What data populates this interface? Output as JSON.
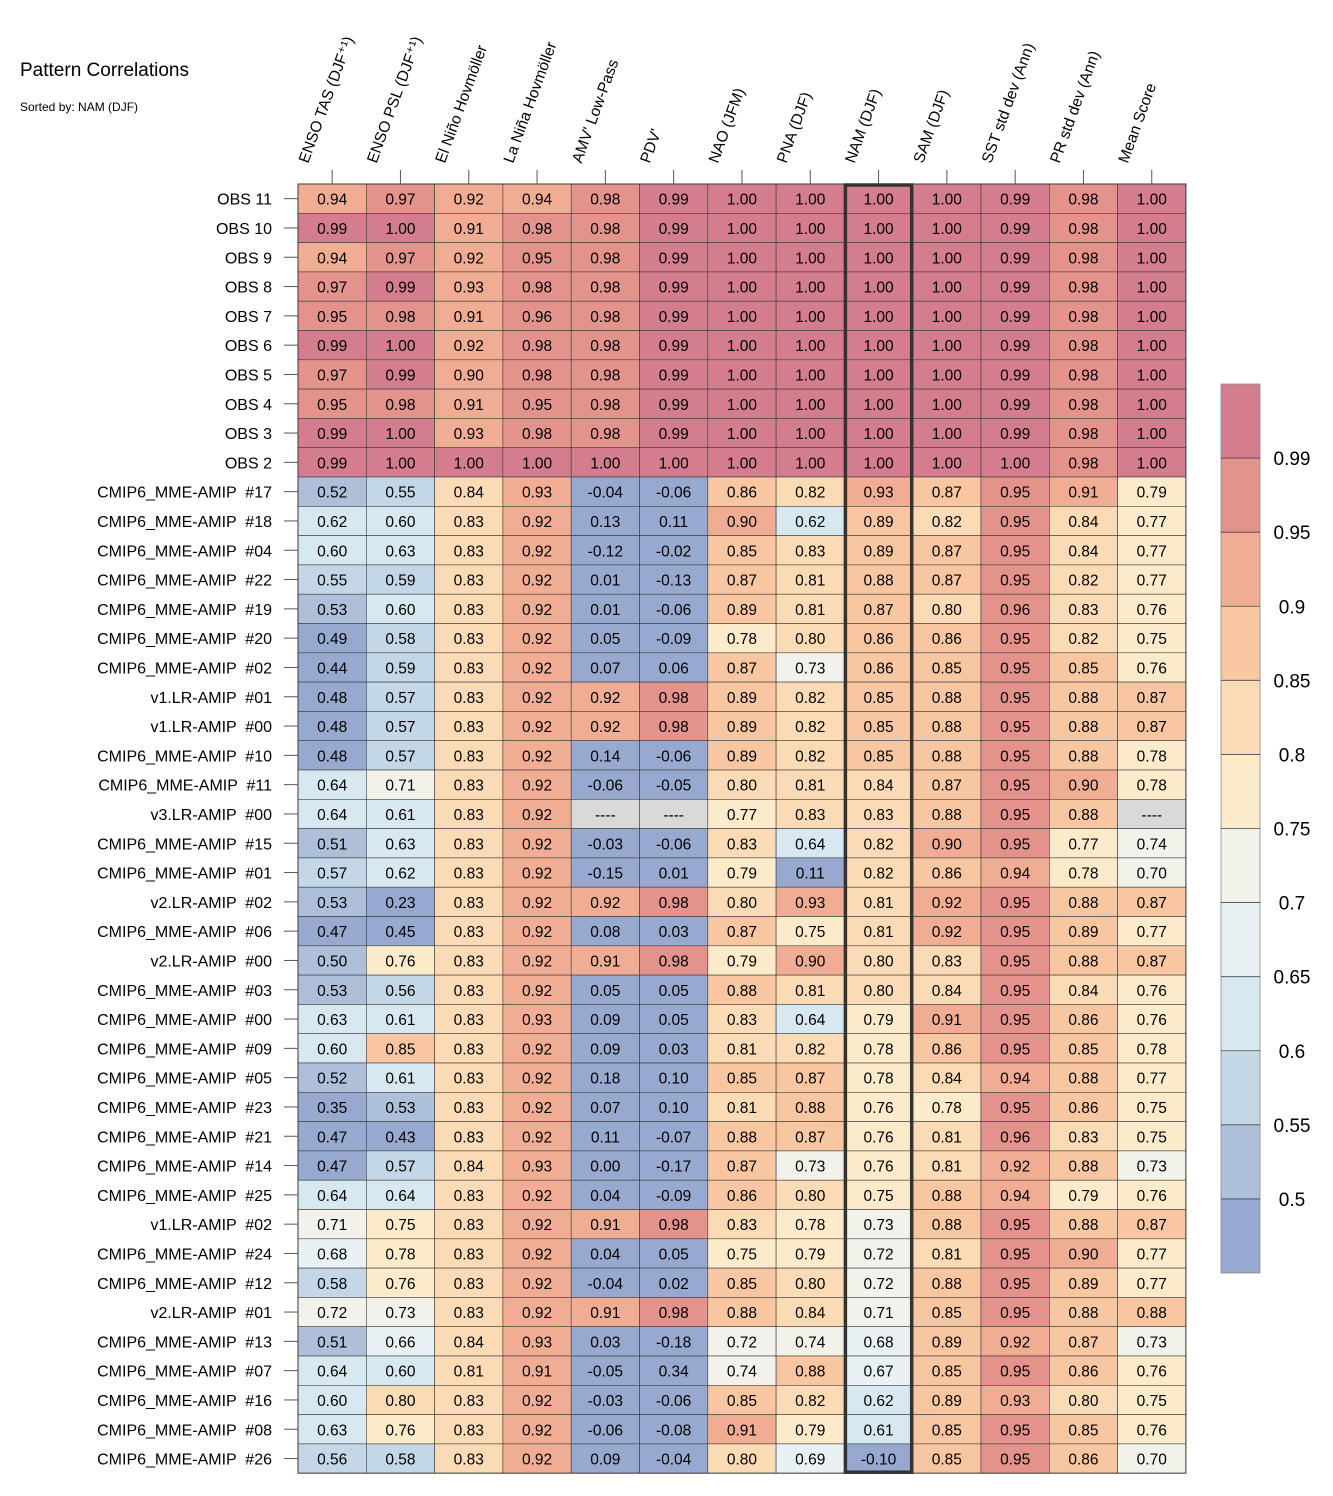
{
  "chart_data": {
    "type": "heatmap",
    "title": "Pattern Correlations",
    "subtitle": "Sorted by: NAM (DJF)",
    "highlight_column": "NAM (DJF)",
    "columns": [
      "ENSO TAS (DJF⁺¹)",
      "ENSO PSL (DJF⁺¹)",
      "El Niño Hovmöller",
      "La Niña Hovmöller",
      "AMV' Low-Pass",
      "PDV'",
      "NAO (JFM)",
      "PNA (DJF)",
      "NAM (DJF)",
      "SAM (DJF)",
      "SST std dev (Ann)",
      "PR std dev (Ann)",
      "Mean Score"
    ],
    "rows": [
      "OBS 11",
      "OBS 10",
      "OBS 9",
      "OBS 8",
      "OBS 7",
      "OBS 6",
      "OBS 5",
      "OBS 4",
      "OBS 3",
      "OBS 2",
      "CMIP6_MME-AMIP  #17",
      "CMIP6_MME-AMIP  #18",
      "CMIP6_MME-AMIP  #04",
      "CMIP6_MME-AMIP  #22",
      "CMIP6_MME-AMIP  #19",
      "CMIP6_MME-AMIP  #20",
      "CMIP6_MME-AMIP  #02",
      "v1.LR-AMIP  #01",
      "v1.LR-AMIP  #00",
      "CMIP6_MME-AMIP  #10",
      "CMIP6_MME-AMIP  #11",
      "v3.LR-AMIP  #00",
      "CMIP6_MME-AMIP  #15",
      "CMIP6_MME-AMIP  #01",
      "v2.LR-AMIP  #02",
      "CMIP6_MME-AMIP  #06",
      "v2.LR-AMIP  #00",
      "CMIP6_MME-AMIP  #03",
      "CMIP6_MME-AMIP  #00",
      "CMIP6_MME-AMIP  #09",
      "CMIP6_MME-AMIP  #05",
      "CMIP6_MME-AMIP  #23",
      "CMIP6_MME-AMIP  #21",
      "CMIP6_MME-AMIP  #14",
      "CMIP6_MME-AMIP  #25",
      "v1.LR-AMIP  #02",
      "CMIP6_MME-AMIP  #24",
      "CMIP6_MME-AMIP  #12",
      "v2.LR-AMIP  #01",
      "CMIP6_MME-AMIP  #13",
      "CMIP6_MME-AMIP  #07",
      "CMIP6_MME-AMIP  #16",
      "CMIP6_MME-AMIP  #08",
      "CMIP6_MME-AMIP  #26"
    ],
    "values": [
      [
        0.94,
        0.97,
        0.92,
        0.94,
        0.98,
        0.99,
        1.0,
        1.0,
        1.0,
        1.0,
        0.99,
        0.98,
        1.0
      ],
      [
        0.99,
        1.0,
        0.91,
        0.98,
        0.98,
        0.99,
        1.0,
        1.0,
        1.0,
        1.0,
        0.99,
        0.98,
        1.0
      ],
      [
        0.94,
        0.97,
        0.92,
        0.95,
        0.98,
        0.99,
        1.0,
        1.0,
        1.0,
        1.0,
        0.99,
        0.98,
        1.0
      ],
      [
        0.97,
        0.99,
        0.93,
        0.98,
        0.98,
        0.99,
        1.0,
        1.0,
        1.0,
        1.0,
        0.99,
        0.98,
        1.0
      ],
      [
        0.95,
        0.98,
        0.91,
        0.96,
        0.98,
        0.99,
        1.0,
        1.0,
        1.0,
        1.0,
        0.99,
        0.98,
        1.0
      ],
      [
        0.99,
        1.0,
        0.92,
        0.98,
        0.98,
        0.99,
        1.0,
        1.0,
        1.0,
        1.0,
        0.99,
        0.98,
        1.0
      ],
      [
        0.97,
        0.99,
        0.9,
        0.98,
        0.98,
        0.99,
        1.0,
        1.0,
        1.0,
        1.0,
        0.99,
        0.98,
        1.0
      ],
      [
        0.95,
        0.98,
        0.91,
        0.95,
        0.98,
        0.99,
        1.0,
        1.0,
        1.0,
        1.0,
        0.99,
        0.98,
        1.0
      ],
      [
        0.99,
        1.0,
        0.93,
        0.98,
        0.98,
        0.99,
        1.0,
        1.0,
        1.0,
        1.0,
        0.99,
        0.98,
        1.0
      ],
      [
        0.99,
        1.0,
        1.0,
        1.0,
        1.0,
        1.0,
        1.0,
        1.0,
        1.0,
        1.0,
        1.0,
        0.98,
        1.0
      ],
      [
        0.52,
        0.55,
        0.84,
        0.93,
        -0.04,
        -0.06,
        0.86,
        0.82,
        0.93,
        0.87,
        0.95,
        0.91,
        0.79
      ],
      [
        0.62,
        0.6,
        0.83,
        0.92,
        0.13,
        0.11,
        0.9,
        0.62,
        0.89,
        0.82,
        0.95,
        0.84,
        0.77
      ],
      [
        0.6,
        0.63,
        0.83,
        0.92,
        -0.12,
        -0.02,
        0.85,
        0.83,
        0.89,
        0.87,
        0.95,
        0.84,
        0.77
      ],
      [
        0.55,
        0.59,
        0.83,
        0.92,
        0.01,
        -0.13,
        0.87,
        0.81,
        0.88,
        0.87,
        0.95,
        0.82,
        0.77
      ],
      [
        0.53,
        0.6,
        0.83,
        0.92,
        0.01,
        -0.06,
        0.89,
        0.81,
        0.87,
        0.8,
        0.96,
        0.83,
        0.76
      ],
      [
        0.49,
        0.58,
        0.83,
        0.92,
        0.05,
        -0.09,
        0.78,
        0.8,
        0.86,
        0.86,
        0.95,
        0.82,
        0.75
      ],
      [
        0.44,
        0.59,
        0.83,
        0.92,
        0.07,
        0.06,
        0.87,
        0.73,
        0.86,
        0.85,
        0.95,
        0.85,
        0.76
      ],
      [
        0.48,
        0.57,
        0.83,
        0.92,
        0.92,
        0.98,
        0.89,
        0.82,
        0.85,
        0.88,
        0.95,
        0.88,
        0.87
      ],
      [
        0.48,
        0.57,
        0.83,
        0.92,
        0.92,
        0.98,
        0.89,
        0.82,
        0.85,
        0.88,
        0.95,
        0.88,
        0.87
      ],
      [
        0.48,
        0.57,
        0.83,
        0.92,
        0.14,
        -0.06,
        0.89,
        0.82,
        0.85,
        0.88,
        0.95,
        0.88,
        0.78
      ],
      [
        0.64,
        0.71,
        0.83,
        0.92,
        -0.06,
        -0.05,
        0.8,
        0.81,
        0.84,
        0.87,
        0.95,
        0.9,
        0.78
      ],
      [
        0.64,
        0.61,
        0.83,
        0.92,
        null,
        null,
        0.77,
        0.83,
        0.83,
        0.88,
        0.95,
        0.88,
        null
      ],
      [
        0.51,
        0.63,
        0.83,
        0.92,
        -0.03,
        -0.06,
        0.83,
        0.64,
        0.82,
        0.9,
        0.95,
        0.77,
        0.74
      ],
      [
        0.57,
        0.62,
        0.83,
        0.92,
        -0.15,
        0.01,
        0.79,
        0.11,
        0.82,
        0.86,
        0.94,
        0.78,
        0.7
      ],
      [
        0.53,
        0.23,
        0.83,
        0.92,
        0.92,
        0.98,
        0.8,
        0.93,
        0.81,
        0.92,
        0.95,
        0.88,
        0.87
      ],
      [
        0.47,
        0.45,
        0.83,
        0.92,
        0.08,
        0.03,
        0.87,
        0.75,
        0.81,
        0.92,
        0.95,
        0.89,
        0.77
      ],
      [
        0.5,
        0.76,
        0.83,
        0.92,
        0.91,
        0.98,
        0.79,
        0.9,
        0.8,
        0.83,
        0.95,
        0.88,
        0.87
      ],
      [
        0.53,
        0.56,
        0.83,
        0.92,
        0.05,
        0.05,
        0.88,
        0.81,
        0.8,
        0.84,
        0.95,
        0.84,
        0.76
      ],
      [
        0.63,
        0.61,
        0.83,
        0.93,
        0.09,
        0.05,
        0.83,
        0.64,
        0.79,
        0.91,
        0.95,
        0.86,
        0.76
      ],
      [
        0.6,
        0.85,
        0.83,
        0.92,
        0.09,
        0.03,
        0.81,
        0.82,
        0.78,
        0.86,
        0.95,
        0.85,
        0.78
      ],
      [
        0.52,
        0.61,
        0.83,
        0.92,
        0.18,
        0.1,
        0.85,
        0.87,
        0.78,
        0.84,
        0.94,
        0.88,
        0.77
      ],
      [
        0.35,
        0.53,
        0.83,
        0.92,
        0.07,
        0.1,
        0.81,
        0.88,
        0.76,
        0.78,
        0.95,
        0.86,
        0.75
      ],
      [
        0.47,
        0.43,
        0.83,
        0.92,
        0.11,
        -0.07,
        0.88,
        0.87,
        0.76,
        0.81,
        0.96,
        0.83,
        0.75
      ],
      [
        0.47,
        0.57,
        0.84,
        0.93,
        -0.0,
        -0.17,
        0.87,
        0.73,
        0.76,
        0.81,
        0.92,
        0.88,
        0.73
      ],
      [
        0.64,
        0.64,
        0.83,
        0.92,
        0.04,
        -0.09,
        0.86,
        0.8,
        0.75,
        0.88,
        0.94,
        0.79,
        0.76
      ],
      [
        0.71,
        0.75,
        0.83,
        0.92,
        0.91,
        0.98,
        0.83,
        0.78,
        0.73,
        0.88,
        0.95,
        0.88,
        0.87
      ],
      [
        0.68,
        0.78,
        0.83,
        0.92,
        0.04,
        0.05,
        0.75,
        0.79,
        0.72,
        0.81,
        0.95,
        0.9,
        0.77
      ],
      [
        0.58,
        0.76,
        0.83,
        0.92,
        -0.04,
        0.02,
        0.85,
        0.8,
        0.72,
        0.88,
        0.95,
        0.89,
        0.77
      ],
      [
        0.72,
        0.73,
        0.83,
        0.92,
        0.91,
        0.98,
        0.88,
        0.84,
        0.71,
        0.85,
        0.95,
        0.88,
        0.88
      ],
      [
        0.51,
        0.66,
        0.84,
        0.93,
        0.03,
        -0.18,
        0.72,
        0.74,
        0.68,
        0.89,
        0.92,
        0.87,
        0.73
      ],
      [
        0.64,
        0.6,
        0.81,
        0.91,
        -0.05,
        0.34,
        0.74,
        0.88,
        0.67,
        0.85,
        0.95,
        0.86,
        0.76
      ],
      [
        0.6,
        0.8,
        0.83,
        0.92,
        -0.03,
        -0.06,
        0.85,
        0.82,
        0.62,
        0.89,
        0.93,
        0.8,
        0.75
      ],
      [
        0.63,
        0.76,
        0.83,
        0.92,
        -0.06,
        -0.08,
        0.91,
        0.79,
        0.61,
        0.85,
        0.95,
        0.85,
        0.76
      ],
      [
        0.56,
        0.58,
        0.83,
        0.92,
        0.09,
        -0.04,
        0.8,
        0.69,
        -0.1,
        0.85,
        0.95,
        0.86,
        0.7
      ]
    ],
    "missing_text": "----",
    "colorbar": {
      "boundaries": [
        0.45,
        0.5,
        0.55,
        0.6,
        0.65,
        0.7,
        0.75,
        0.8,
        0.85,
        0.9,
        0.95,
        0.99,
        1.0
      ],
      "tick_labels": [
        "0.5",
        "0.55",
        "0.6",
        "0.65",
        "0.7",
        "0.75",
        "0.8",
        "0.85",
        "0.9",
        "0.95",
        "0.99"
      ],
      "colors": [
        "#98a9cf",
        "#aebfda",
        "#c4d7e7",
        "#d7e8f0",
        "#e8f2f5",
        "#f2f2ea",
        "#fcebcb",
        "#fbdbb5",
        "#f8c7a2",
        "#f1ad94",
        "#e3928c",
        "#d37d8f"
      ],
      "missing_color": "#d9d9d9",
      "highlight_border_color": "#333333"
    }
  }
}
